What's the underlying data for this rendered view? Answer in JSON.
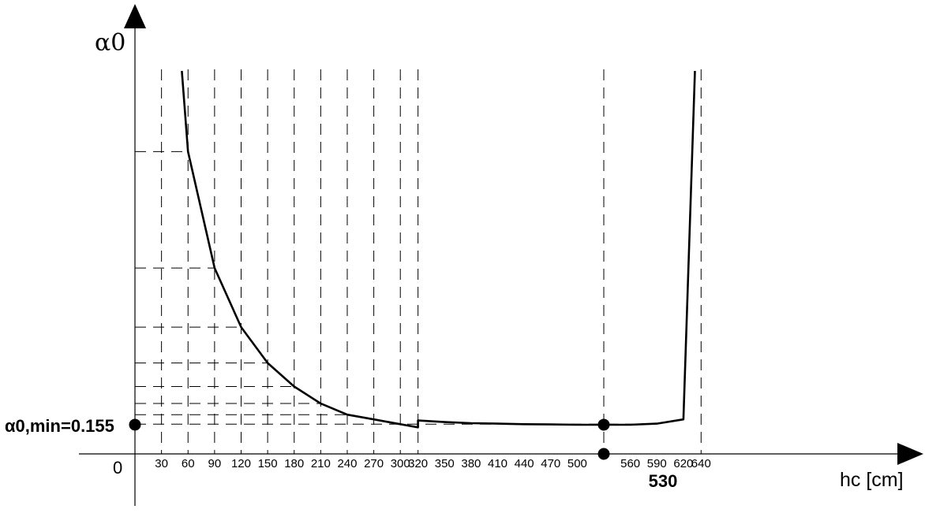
{
  "chart_data": {
    "type": "line",
    "ylabel": "α0",
    "xlabel": "hc [cm]",
    "origin_label": "0",
    "min_label": "α0,min=0.155",
    "highlight_x_label": "530",
    "xlim": [
      0,
      770
    ],
    "ylim": [
      0.1,
      0.825
    ],
    "x_ticks": [
      30,
      60,
      90,
      120,
      150,
      180,
      210,
      240,
      270,
      300,
      320,
      350,
      380,
      410,
      440,
      470,
      500,
      560,
      590,
      620,
      640
    ],
    "vertical_gridlines_x": [
      30,
      60,
      90,
      120,
      150,
      180,
      210,
      240,
      270,
      300,
      320,
      530,
      640
    ],
    "horizontal_gridlines_y": [
      0.67,
      0.4505,
      0.339,
      0.2715,
      0.227,
      0.195,
      0.174,
      0.156
    ],
    "series": [
      {
        "x": [
          53,
          60,
          90,
          120,
          150,
          180,
          210,
          240,
          270,
          300,
          320,
          320,
          350,
          380,
          410,
          440,
          470,
          500,
          530,
          560,
          590,
          620,
          633
        ],
        "y": [
          0.822,
          0.67,
          0.4505,
          0.339,
          0.2715,
          0.227,
          0.195,
          0.174,
          0.165,
          0.156,
          0.15,
          0.163,
          0.16,
          0.158,
          0.157,
          0.156,
          0.1555,
          0.155,
          0.155,
          0.155,
          0.157,
          0.165,
          0.822
        ]
      }
    ],
    "highlight_points": [
      {
        "x": 0,
        "y": 0.155
      },
      {
        "x": 530,
        "y": 0.155
      },
      {
        "x": 530,
        "y": 0.1
      }
    ]
  }
}
